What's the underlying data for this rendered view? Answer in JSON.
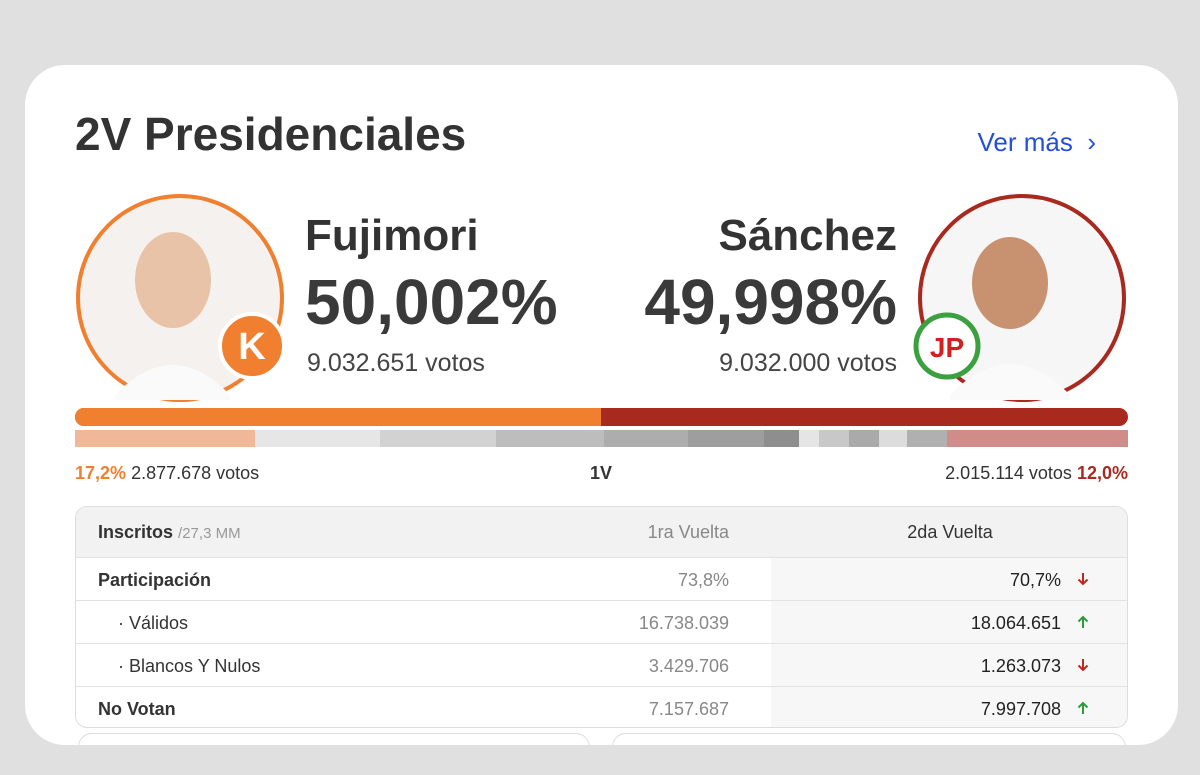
{
  "header": {
    "title": "2V Presidenciales",
    "link": "Ver más"
  },
  "candidates": [
    {
      "name": "Fujimori",
      "percent": "50,002%",
      "votes": "9.032.651 votos",
      "logo": "K"
    },
    {
      "name": "Sánchez",
      "percent": "49,998%",
      "votes": "9.032.000 votos",
      "logo": "JP"
    }
  ],
  "first_round": {
    "label": "1V",
    "left": {
      "percent": "17,2%",
      "votes": "2.877.678 votos"
    },
    "right": {
      "percent": "12,0%",
      "votes": "2.015.114 votos"
    }
  },
  "table": {
    "header": {
      "label": "Inscritos",
      "sub": "/27,3 MM",
      "col1": "1ra Vuelta",
      "col2": "2da Vuelta"
    },
    "rows": [
      {
        "label": "Participación",
        "first": "73,8%",
        "second": "70,7%",
        "trend": "down"
      },
      {
        "label": "· Válidos",
        "first": "16.738.039",
        "second": "18.064.651",
        "trend": "up"
      },
      {
        "label": "· Blancos Y Nulos",
        "first": "3.429.706",
        "second": "1.263.073",
        "trend": "down"
      },
      {
        "label": "No Votan",
        "first": "7.157.687",
        "second": "7.997.708",
        "trend": "up"
      }
    ]
  }
}
